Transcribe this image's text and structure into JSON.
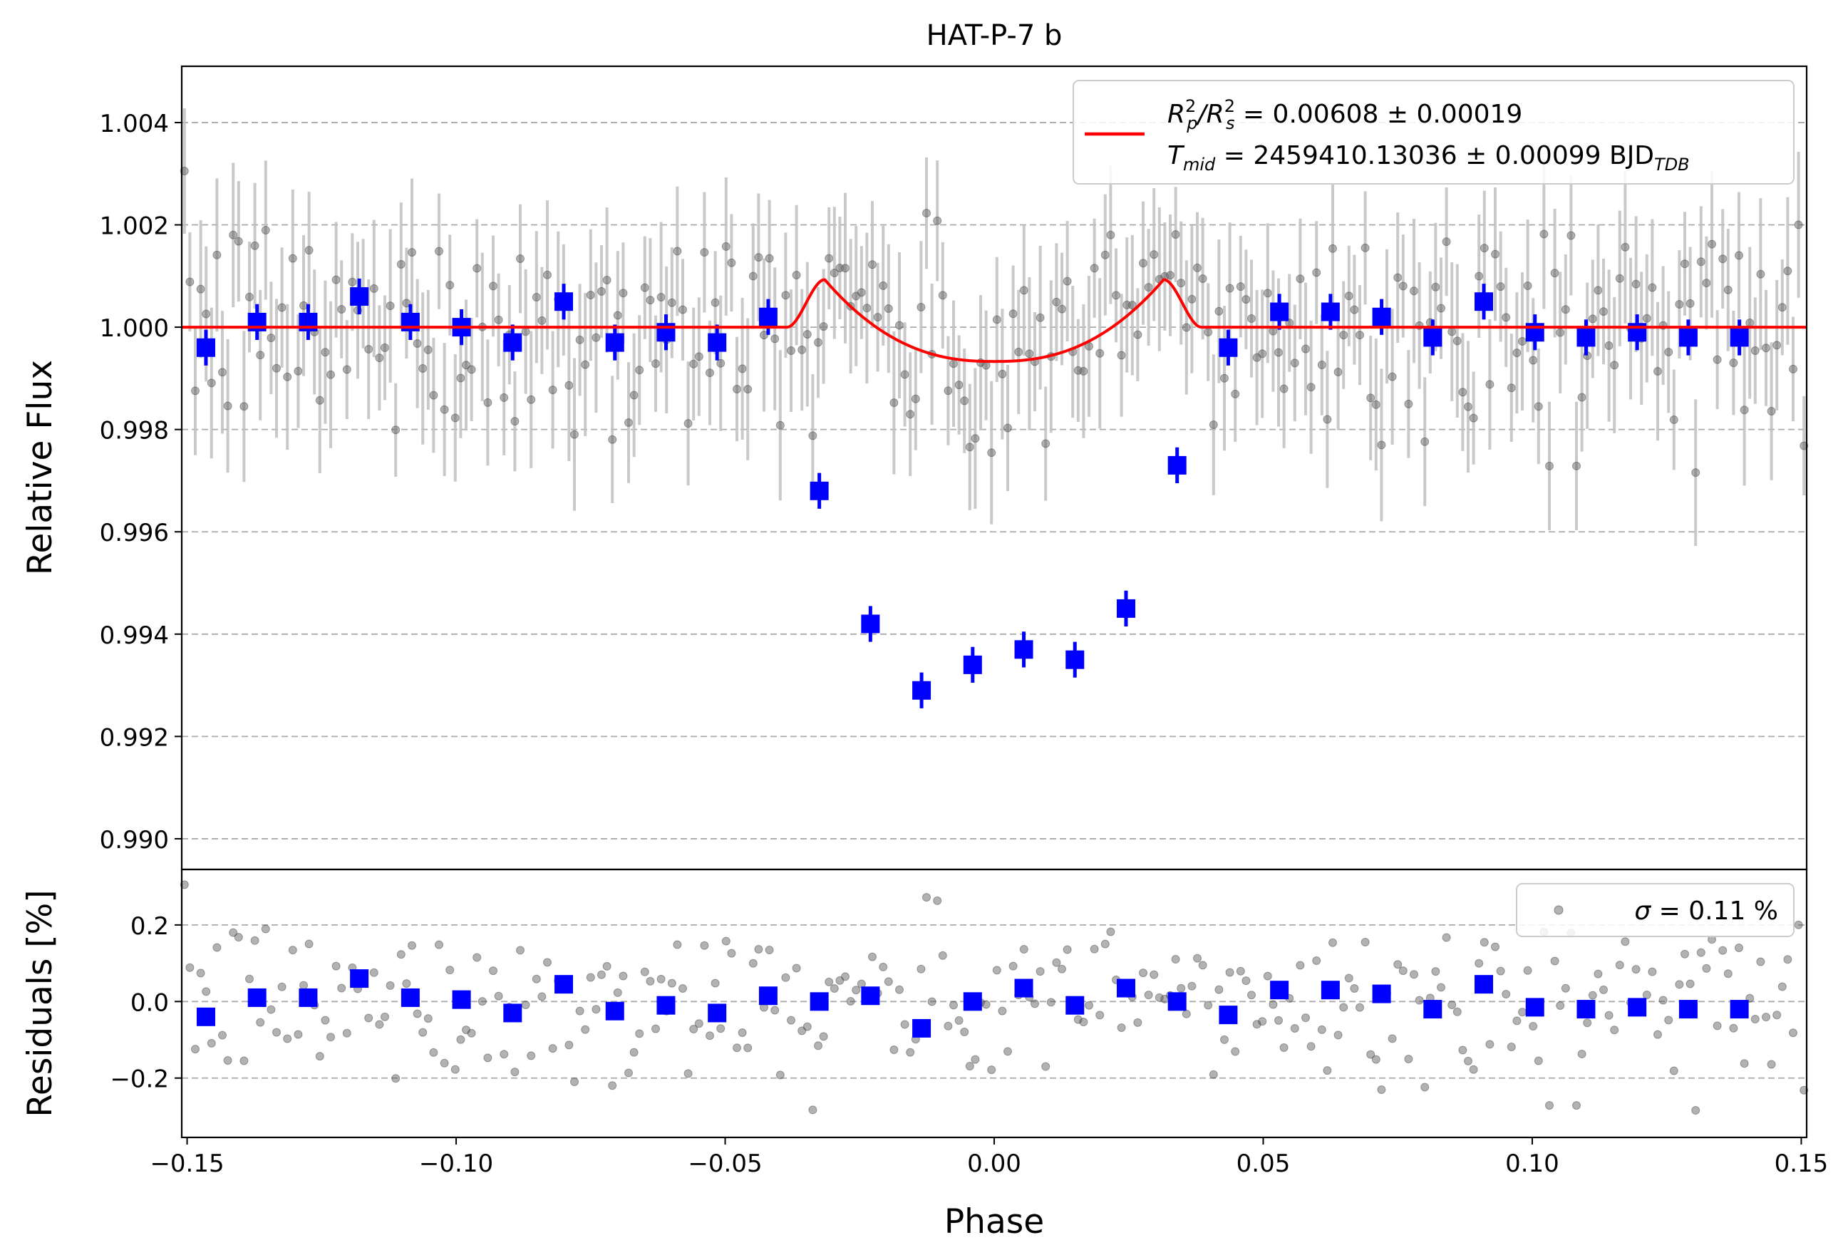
{
  "chart_data": [
    {
      "type": "scatter",
      "panel": "main",
      "title": "HAT-P-7 b",
      "xlabel": "",
      "ylabel": "Relative Flux",
      "xlim": [
        -0.151,
        0.151
      ],
      "ylim": [
        0.9894,
        1.0051
      ],
      "yticks": [
        0.99,
        0.992,
        0.994,
        0.996,
        0.998,
        1.0,
        1.002,
        1.004
      ],
      "ytick_labels": [
        "0.990",
        "0.992",
        "0.994",
        "0.996",
        "0.998",
        "1.000",
        "1.002",
        "1.004"
      ],
      "grid": "horizontal dashed",
      "legend_position": "top-right",
      "model": {
        "name_parts": {
          "line1_pre": "R",
          "line1_rest": " = 0.00608 ± 0.00019",
          "line2_pre": "T",
          "line2_rest": " = 2459410.13036 ± 0.00099 BJD"
        },
        "rp2_rs2": 0.00608,
        "rp2_rs2_err": 0.00019,
        "tmid": 2459410.13036,
        "tmid_err": 0.00099,
        "time_standard": "BJD_TDB",
        "transit_depth_center": 0.99933,
        "ingress_start": -0.0385,
        "ingress_end": -0.0315,
        "egress_start": 0.0315,
        "egress_end": 0.0385,
        "baseline": 1.0
      },
      "binned": {
        "x": [
          -0.1465,
          -0.137,
          -0.1275,
          -0.118,
          -0.1085,
          -0.099,
          -0.0895,
          -0.08,
          -0.0705,
          -0.061,
          -0.0515,
          -0.042,
          -0.0325,
          -0.023,
          -0.0135,
          -0.004,
          0.0055,
          0.015,
          0.0245,
          0.034,
          0.0435,
          0.053,
          0.0625,
          0.072,
          0.0815,
          0.091,
          0.1005,
          0.11,
          0.1195,
          0.129,
          0.1385
        ],
        "y": [
          0.9996,
          1.0001,
          1.0001,
          1.0006,
          1.0001,
          1.0,
          0.9997,
          1.0005,
          0.9997,
          0.9999,
          0.9997,
          1.0002,
          0.9968,
          0.9942,
          0.9929,
          0.9934,
          0.9937,
          0.9935,
          0.9945,
          0.9973,
          0.9996,
          1.0003,
          1.0003,
          1.0002,
          0.9998,
          1.0005,
          0.9999,
          0.9998,
          0.9999,
          0.9998,
          0.9998
        ]
      },
      "unbinned": {
        "point_count": 300,
        "pointwise_error": 0.0012,
        "scatter_percent": 0.11
      }
    },
    {
      "type": "scatter",
      "panel": "residuals",
      "xlabel": "Phase",
      "ylabel": "Residuals [%]",
      "xlim": [
        -0.151,
        0.151
      ],
      "ylim": [
        -0.355,
        0.345
      ],
      "yticks": [
        -0.2,
        0.0,
        0.2
      ],
      "ytick_labels": [
        "−0.2",
        "0.0",
        "0.2"
      ],
      "xticks": [
        -0.15,
        -0.1,
        -0.05,
        0.0,
        0.05,
        0.1,
        0.15
      ],
      "xtick_labels": [
        "−0.15",
        "−0.10",
        "−0.05",
        "0.00",
        "0.05",
        "0.10",
        "0.15"
      ],
      "grid": "horizontal dashed",
      "legend_position": "top-right",
      "legend_sigma": {
        "sym": "σ",
        "rest": " = 0.11 %"
      },
      "binned": {
        "x": [
          -0.1465,
          -0.137,
          -0.1275,
          -0.118,
          -0.1085,
          -0.099,
          -0.0895,
          -0.08,
          -0.0705,
          -0.061,
          -0.0515,
          -0.042,
          -0.0325,
          -0.023,
          -0.0135,
          -0.004,
          0.0055,
          0.015,
          0.0245,
          0.034,
          0.0435,
          0.053,
          0.0625,
          0.072,
          0.0815,
          0.091,
          0.1005,
          0.11,
          0.1195,
          0.129,
          0.1385
        ],
        "y": [
          -0.04,
          0.01,
          0.01,
          0.06,
          0.01,
          0.005,
          -0.03,
          0.045,
          -0.025,
          -0.01,
          -0.03,
          0.015,
          0.0,
          0.015,
          -0.07,
          0.0,
          0.035,
          -0.01,
          0.035,
          0.0,
          -0.035,
          0.03,
          0.03,
          0.02,
          -0.02,
          0.045,
          -0.015,
          -0.02,
          -0.015,
          -0.02,
          -0.02
        ]
      }
    }
  ],
  "colors": {
    "model": "#ff0000",
    "binned": "#0000ff",
    "raw_point": "#555555",
    "error_bar": "#bfbfbf",
    "grid": "#aaaaaa"
  }
}
